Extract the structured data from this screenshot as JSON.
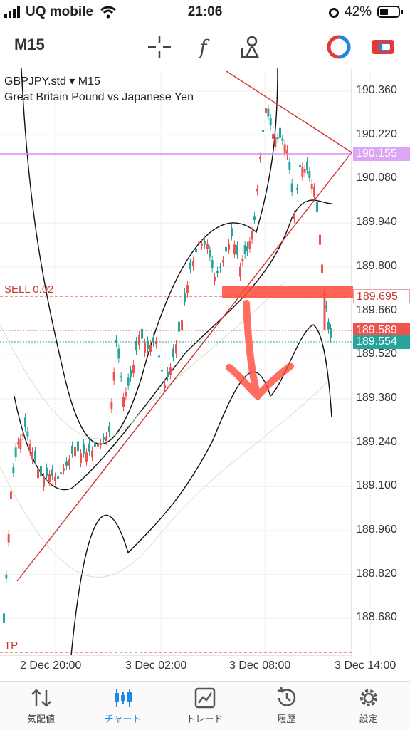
{
  "status": {
    "carrier": "UQ mobile",
    "time": "21:06",
    "battery": "42%"
  },
  "toolbar": {
    "timeframe": "M15"
  },
  "chart": {
    "symbol": "GBPJPY.std ▾ M15",
    "description": "Great Britain Pound vs Japanese Yen",
    "y_ticks": [
      "190.360",
      "190.220",
      "190.080",
      "189.940",
      "189.800",
      "189.660",
      "189.520",
      "189.380",
      "189.240",
      "189.100",
      "188.960",
      "188.820",
      "188.680"
    ],
    "x_ticks": [
      "2 Dec 20:00",
      "3 Dec 02:00",
      "3 Dec 08:00",
      "3 Dec 14:00"
    ],
    "price_tags": {
      "line": "190.155",
      "sell": "189.695",
      "bid": "189.589",
      "ask": "189.554"
    },
    "orders": {
      "sell": "SELL 0.02",
      "tp": "TP"
    },
    "colors": {
      "bull": "#26a69a",
      "bear": "#ef5350",
      "trend": "#d32f2f",
      "horizontal": "#d98cf0"
    }
  },
  "tabs": [
    {
      "label": "気配値",
      "icon": "quotes-icon"
    },
    {
      "label": "チャート",
      "icon": "chart-icon"
    },
    {
      "label": "トレード",
      "icon": "trade-icon"
    },
    {
      "label": "履歴",
      "icon": "history-icon"
    },
    {
      "label": "設定",
      "icon": "settings-icon"
    }
  ]
}
